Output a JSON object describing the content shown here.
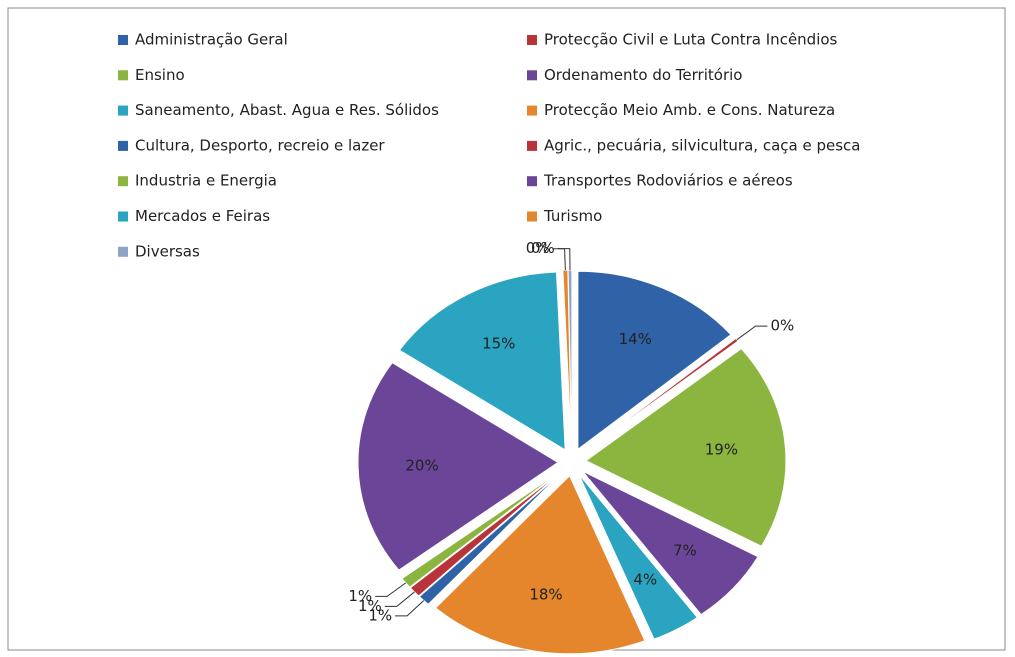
{
  "chart_data": {
    "type": "pie",
    "categories": [
      "Administração Geral",
      "Protecção Civil e Luta Contra Incêndios",
      "Ensino",
      "Ordenamento do Território",
      "Saneamento, Abast. Agua e Res. Sólidos",
      "Protecção Meio Amb. e Cons. Natureza",
      "Cultura, Desporto, recreio e lazer",
      "Agric., pecuária, silvicultura, caça e pesca",
      "Industria e Energia",
      "Transportes Rodoviários e aéreos",
      "Mercados e Feiras",
      "Turismo",
      "Diversas"
    ],
    "values": [
      14,
      0.3,
      19,
      7,
      4,
      18,
      1,
      1,
      1,
      20,
      15,
      0.4,
      0.3
    ],
    "value_labels": [
      "14%",
      "0%",
      "19%",
      "7%",
      "4%",
      "18%",
      "1%",
      "1%",
      "1%",
      "20%",
      "15%",
      "0%",
      "0%"
    ],
    "colors": [
      "#2f62a6",
      "#b8333a",
      "#8bb53f",
      "#6b4598",
      "#2aa4c0",
      "#e6862c",
      "#2f62a6",
      "#b8333a",
      "#8bb53f",
      "#6b4598",
      "#2aa4c0",
      "#e6862c",
      "#8fa3c6"
    ],
    "legend": "top"
  }
}
